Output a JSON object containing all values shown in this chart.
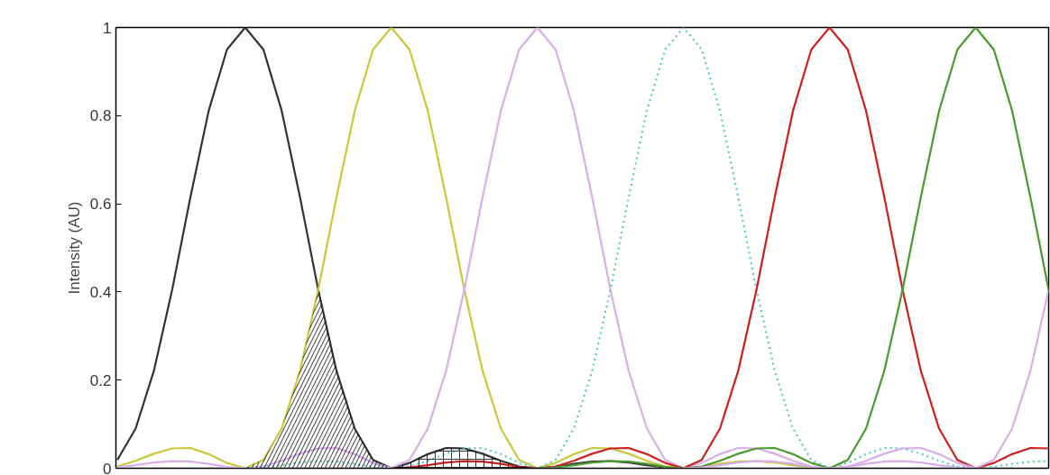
{
  "chart_data": {
    "type": "line",
    "ylabel": "Intensity (AU)",
    "ylim": [
      0,
      1
    ],
    "yticks": [
      0,
      0.2,
      0.4,
      0.6,
      0.8,
      1
    ],
    "tick_labels": "y",
    "grid": false,
    "categories": [
      null,
      null,
      null,
      null,
      null,
      null,
      null,
      null,
      null,
      null,
      null,
      null,
      null,
      null,
      null,
      null,
      null,
      null,
      null,
      null,
      null,
      null,
      null,
      null,
      null,
      null,
      null,
      null,
      null,
      null,
      null,
      null,
      null,
      null,
      null,
      null,
      null,
      null,
      null,
      null,
      null,
      null,
      null,
      null,
      null,
      null,
      null,
      null,
      null,
      null,
      null,
      null
    ],
    "series": [
      {
        "color": "#333333",
        "line_style": "solid",
        "values": [
          0.019,
          0.09,
          0.221,
          0.405,
          0.615,
          0.811,
          0.95,
          1,
          0.95,
          0.811,
          0.615,
          0.405,
          0.221,
          0.09,
          0.019,
          0,
          0.012,
          0.032,
          0.046,
          0.045,
          0.033,
          0.017,
          0.004,
          0,
          0.003,
          0.01,
          0.015,
          0.016,
          0.013,
          0.007,
          0.002,
          0,
          null,
          null,
          null,
          null,
          null,
          null,
          null,
          null,
          null,
          null,
          null,
          null,
          null,
          null,
          null,
          null,
          null,
          null,
          null,
          null
        ]
      },
      {
        "color": "#c8c83a",
        "line_style": "solid",
        "values": [
          0.004,
          0.017,
          0.033,
          0.045,
          0.046,
          0.032,
          0.012,
          0,
          0.019,
          0.09,
          0.221,
          0.405,
          0.615,
          0.811,
          0.95,
          1,
          0.95,
          0.811,
          0.615,
          0.405,
          0.221,
          0.09,
          0.019,
          0,
          0.012,
          0.032,
          0.046,
          0.045,
          0.033,
          0.017,
          0.004,
          0,
          0.003,
          0.01,
          0.015,
          0.016,
          0.013,
          0.007,
          0.002,
          0,
          null,
          null,
          null,
          null,
          null,
          null,
          null,
          null,
          null,
          null,
          null,
          null
        ]
      },
      {
        "color": "#d8aee8",
        "line_style": "solid",
        "values": [
          0.002,
          0.007,
          0.013,
          0.016,
          0.015,
          0.01,
          0.003,
          0,
          0.004,
          0.017,
          0.033,
          0.045,
          0.046,
          0.032,
          0.012,
          0,
          0.019,
          0.09,
          0.221,
          0.405,
          0.615,
          0.811,
          0.95,
          1,
          0.95,
          0.811,
          0.615,
          0.405,
          0.221,
          0.09,
          0.019,
          0,
          0.012,
          0.032,
          0.046,
          0.045,
          0.033,
          0.017,
          0.004,
          0,
          0.003,
          0.01,
          0.015,
          0.016,
          0.013,
          0.007,
          0.002,
          0,
          null,
          null,
          null,
          null
        ]
      },
      {
        "color": "#55c8c8",
        "line_style": "dotted",
        "values": [
          null,
          null,
          null,
          null,
          null,
          null,
          null,
          0,
          0.002,
          0.007,
          0.013,
          0.016,
          0.015,
          0.01,
          0.003,
          0,
          0.004,
          0.017,
          0.033,
          0.045,
          0.046,
          0.032,
          0.012,
          0,
          0.019,
          0.09,
          0.221,
          0.405,
          0.615,
          0.811,
          0.95,
          1,
          0.95,
          0.811,
          0.615,
          0.405,
          0.221,
          0.09,
          0.019,
          0,
          0.012,
          0.032,
          0.046,
          0.045,
          0.033,
          0.017,
          0.004,
          0,
          0.003,
          0.01,
          0.015,
          0.016
        ]
      },
      {
        "color": "#cc2020",
        "line_style": "solid",
        "values": [
          null,
          null,
          null,
          null,
          null,
          null,
          null,
          null,
          null,
          null,
          null,
          null,
          null,
          null,
          null,
          0,
          0.002,
          0.007,
          0.013,
          0.016,
          0.015,
          0.01,
          0.003,
          0,
          0.004,
          0.017,
          0.033,
          0.045,
          0.046,
          0.032,
          0.012,
          0,
          0.019,
          0.09,
          0.221,
          0.405,
          0.615,
          0.811,
          0.95,
          1,
          0.95,
          0.811,
          0.615,
          0.405,
          0.221,
          0.09,
          0.019,
          0,
          0.012,
          0.032,
          0.046,
          0.045
        ]
      },
      {
        "color": "#4a9a30",
        "line_style": "solid",
        "values": [
          null,
          null,
          null,
          null,
          null,
          null,
          null,
          null,
          null,
          null,
          null,
          null,
          null,
          null,
          null,
          null,
          null,
          null,
          null,
          null,
          null,
          null,
          null,
          0,
          0.002,
          0.007,
          0.013,
          0.016,
          0.015,
          0.01,
          0.003,
          0,
          0.004,
          0.017,
          0.033,
          0.045,
          0.046,
          0.032,
          0.012,
          0,
          0.019,
          0.09,
          0.221,
          0.405,
          0.615,
          0.811,
          0.95,
          1,
          0.95,
          0.811,
          0.615,
          0.405
        ]
      },
      {
        "color": "#d8aee8",
        "line_style": "solid",
        "values": [
          null,
          null,
          null,
          null,
          null,
          null,
          null,
          null,
          null,
          null,
          null,
          null,
          null,
          null,
          null,
          null,
          null,
          null,
          null,
          null,
          null,
          null,
          null,
          null,
          null,
          null,
          null,
          null,
          null,
          null,
          null,
          0,
          0.002,
          0.007,
          0.013,
          0.016,
          0.015,
          0.01,
          0.003,
          0,
          0.004,
          0.017,
          0.033,
          0.045,
          0.046,
          0.032,
          0.012,
          0,
          0.019,
          0.09,
          0.221,
          0.405
        ]
      },
      {
        "type": "area",
        "color": "#000000",
        "values": [
          null,
          null,
          null,
          null,
          null,
          null,
          null,
          0,
          0.019,
          0.09,
          0.221,
          0.405,
          0.221,
          0.09,
          0.019,
          0,
          null,
          null,
          null,
          null,
          null,
          null,
          null,
          null,
          null,
          null,
          null,
          null,
          null,
          null,
          null,
          null,
          null,
          null,
          null,
          null,
          null,
          null,
          null,
          null,
          null,
          null,
          null,
          null,
          null,
          null,
          null,
          null,
          null,
          null,
          null,
          null
        ]
      },
      {
        "type": "area",
        "color": "#000000",
        "values": [
          null,
          null,
          null,
          null,
          null,
          null,
          null,
          null,
          null,
          null,
          null,
          null,
          null,
          null,
          null,
          0,
          0.012,
          0.032,
          0.046,
          0.045,
          0.033,
          0.017,
          0.004,
          0,
          null,
          null,
          null,
          null,
          null,
          null,
          null,
          null,
          null,
          null,
          null,
          null,
          null,
          null,
          null,
          null,
          null,
          null,
          null,
          null,
          null,
          null,
          null,
          null,
          null,
          null,
          null,
          null
        ]
      }
    ]
  }
}
